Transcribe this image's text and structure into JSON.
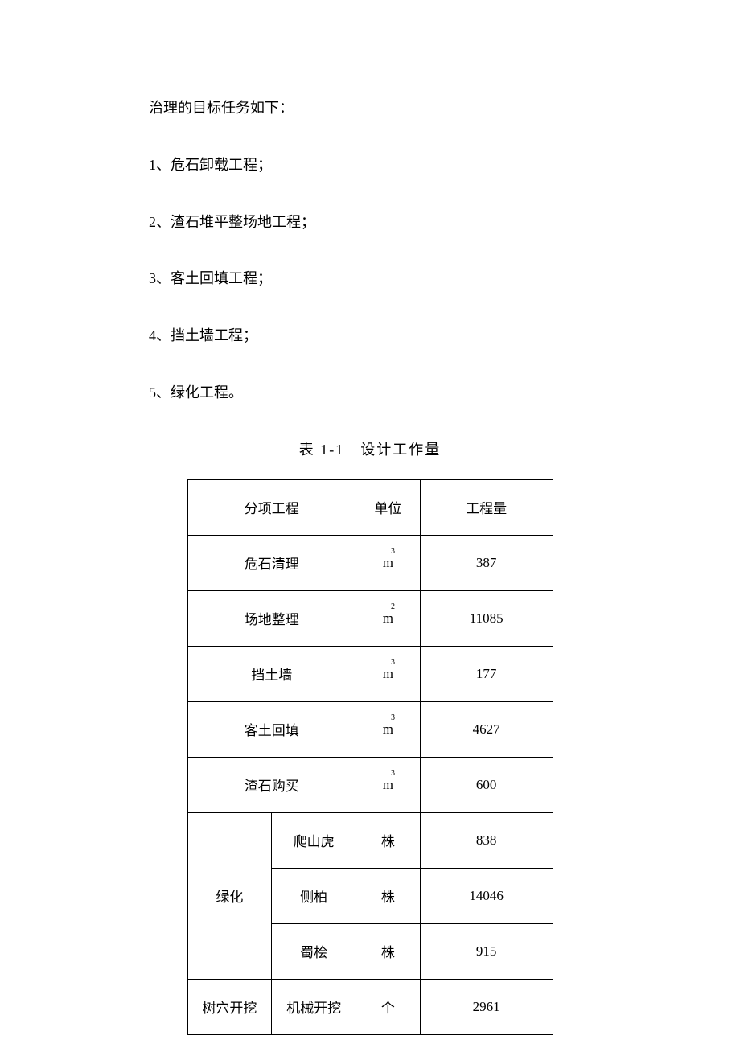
{
  "intro": "治理的目标任务如下：",
  "list": [
    "1、危石卸载工程；",
    "2、渣石堆平整场地工程；",
    "3、客土回填工程；",
    "4、挡土墙工程；",
    "5、绿化工程。"
  ],
  "table": {
    "caption": "表 1-1　设计工作量",
    "headers": {
      "item": "分项工程",
      "unit": "单位",
      "quantity": "工程量"
    },
    "rows": [
      {
        "item": "危石清理",
        "unit_base": "m",
        "unit_exp": "3",
        "qty": "387"
      },
      {
        "item": "场地整理",
        "unit_base": "m",
        "unit_exp": "2",
        "qty": "11085"
      },
      {
        "item": "挡土墙",
        "unit_base": "m",
        "unit_exp": "3",
        "qty": "177"
      },
      {
        "item": "客土回填",
        "unit_base": "m",
        "unit_exp": "3",
        "qty": "4627"
      },
      {
        "item": "渣石购买",
        "unit_base": "m",
        "unit_exp": "3",
        "qty": "600"
      }
    ],
    "greening": {
      "group_label": "绿化",
      "sub_rows": [
        {
          "sub": "爬山虎",
          "unit": "株",
          "qty": "838"
        },
        {
          "sub": "侧柏",
          "unit": "株",
          "qty": "14046"
        },
        {
          "sub": "蜀桧",
          "unit": "株",
          "qty": "915"
        }
      ]
    },
    "tree_pit": {
      "group_label": "树穴开挖",
      "sub": "机械开挖",
      "unit": "个",
      "qty": "2961"
    }
  },
  "colors": {
    "text": "#000000",
    "background": "#ffffff",
    "border": "#000000"
  }
}
